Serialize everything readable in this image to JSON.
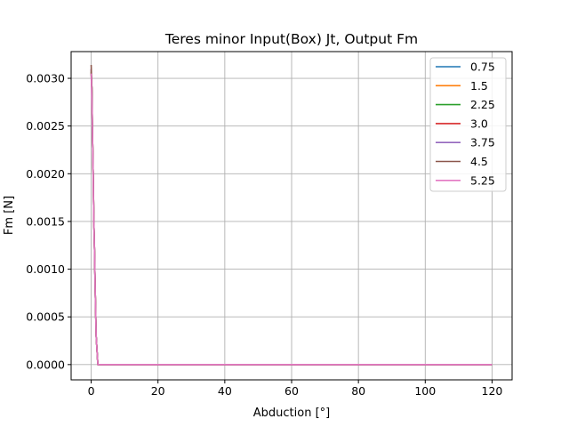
{
  "chart_data": {
    "type": "line",
    "title": "Teres minor Input(Box) Jt, Output Fm",
    "xlabel": "Abduction [°]",
    "ylabel": "Fm [N]",
    "xlim": [
      -6,
      126
    ],
    "ylim": [
      -0.00016,
      0.00328
    ],
    "xticks": [
      0,
      20,
      40,
      60,
      80,
      100,
      120
    ],
    "xtick_labels": [
      "0",
      "20",
      "40",
      "60",
      "80",
      "100",
      "120"
    ],
    "yticks": [
      0,
      0.0005,
      0.001,
      0.0015,
      0.002,
      0.0025,
      0.003
    ],
    "ytick_labels": [
      "0.0000",
      "0.0005",
      "0.0010",
      "0.0015",
      "0.0020",
      "0.0025",
      "0.0030"
    ],
    "grid": true,
    "legend_position": "top-right",
    "series": [
      {
        "name": "0.75",
        "color": "#1f77b4",
        "x": [
          0,
          0.2,
          0.4,
          0.6,
          0.8,
          1.0,
          1.2,
          1.5,
          2,
          10,
          40,
          80,
          120
        ],
        "y": [
          0.00305,
          0.0029,
          0.0024,
          0.002,
          0.0015,
          0.0012,
          0.0008,
          0.0003,
          0.0,
          0.0,
          0.0,
          0.0,
          0.0
        ]
      },
      {
        "name": "1.5",
        "color": "#ff7f0e",
        "x": [
          0,
          0.2,
          0.4,
          0.6,
          0.8,
          1.0,
          1.2,
          1.5,
          2,
          10,
          40,
          80,
          120
        ],
        "y": [
          0.00306,
          0.0029,
          0.0024,
          0.002,
          0.0015,
          0.0012,
          0.0008,
          0.0003,
          0.0,
          0.0,
          0.0,
          0.0,
          0.0
        ]
      },
      {
        "name": "2.25",
        "color": "#2ca02c",
        "x": [
          0,
          0.2,
          0.4,
          0.6,
          0.8,
          1.0,
          1.2,
          1.5,
          2,
          10,
          40,
          80,
          120
        ],
        "y": [
          0.00307,
          0.0029,
          0.0024,
          0.002,
          0.0015,
          0.0012,
          0.0008,
          0.0003,
          0.0,
          0.0,
          0.0,
          0.0,
          0.0
        ]
      },
      {
        "name": "3.0",
        "color": "#d62728",
        "x": [
          0,
          0.2,
          0.4,
          0.6,
          0.8,
          1.0,
          1.2,
          1.5,
          2,
          10,
          40,
          80,
          120
        ],
        "y": [
          0.00309,
          0.0029,
          0.0024,
          0.002,
          0.0015,
          0.0012,
          0.0008,
          0.0003,
          0.0,
          0.0,
          0.0,
          0.0,
          0.0
        ]
      },
      {
        "name": "3.75",
        "color": "#9467bd",
        "x": [
          0,
          0.2,
          0.4,
          0.6,
          0.8,
          1.0,
          1.2,
          1.5,
          2,
          10,
          40,
          80,
          120
        ],
        "y": [
          0.0031,
          0.0029,
          0.0024,
          0.002,
          0.0015,
          0.0012,
          0.0008,
          0.0003,
          0.0,
          0.0,
          0.0,
          0.0,
          0.0
        ]
      },
      {
        "name": "4.5",
        "color": "#8c564b",
        "x": [
          0,
          0.2,
          0.4,
          0.6,
          0.8,
          1.0,
          1.2,
          1.5,
          2,
          10,
          40,
          80,
          120
        ],
        "y": [
          0.00314,
          0.0029,
          0.0024,
          0.002,
          0.0015,
          0.0012,
          0.0008,
          0.0003,
          0.0,
          0.0,
          0.0,
          0.0,
          0.0
        ]
      },
      {
        "name": "5.25",
        "color": "#e377c2",
        "x": [
          0,
          0.2,
          0.4,
          0.6,
          0.8,
          1.0,
          1.2,
          1.5,
          2,
          10,
          40,
          80,
          120
        ],
        "y": [
          0.00305,
          0.0028,
          0.0024,
          0.002,
          0.0015,
          0.0012,
          0.0008,
          0.0003,
          0.0,
          0.0,
          0.0,
          0.0,
          0.0
        ]
      }
    ]
  }
}
